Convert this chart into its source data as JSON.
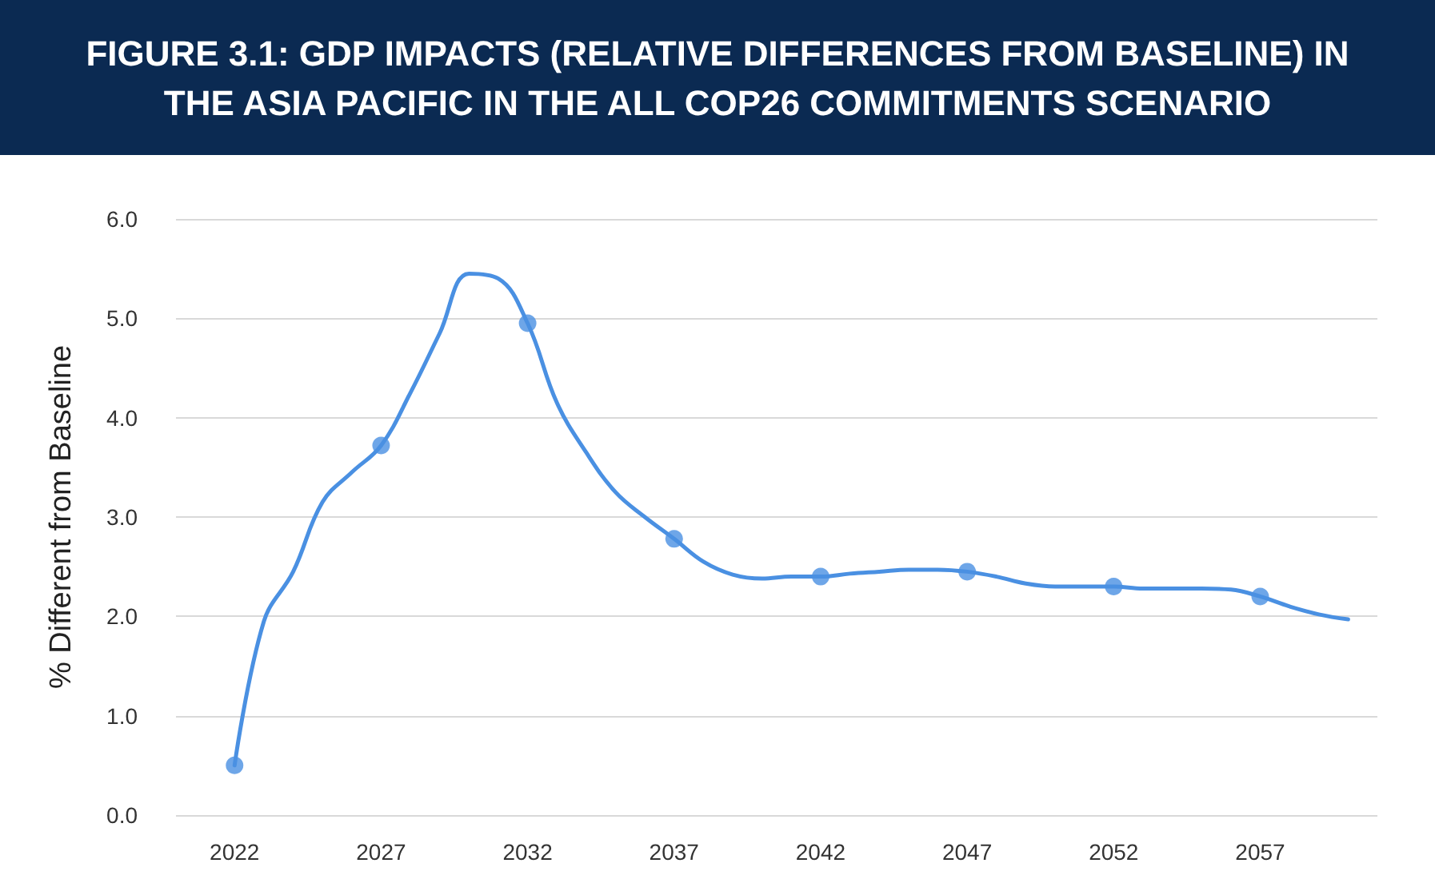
{
  "chart_data": {
    "type": "line",
    "title": "FIGURE 3.1:  GDP IMPACTS (RELATIVE DIFFERENCES FROM BASELINE) IN THE ASIA PACIFIC IN THE ALL COP26 COMMITMENTS SCENARIO",
    "ylabel": "% Different from Baseline",
    "xlim": [
      2020,
      2061
    ],
    "xticks": [
      2022,
      2027,
      2032,
      2037,
      2042,
      2047,
      2052,
      2057
    ],
    "ylim": [
      0,
      6
    ],
    "yticks": [
      {
        "value": 0,
        "label": "0.0"
      },
      {
        "value": 1,
        "label": "1.0"
      },
      {
        "value": 2,
        "label": "2.0"
      },
      {
        "value": 3,
        "label": "3.0"
      },
      {
        "value": 4,
        "label": "4.0"
      },
      {
        "value": 5,
        "label": "5.0"
      },
      {
        "value": 6,
        "label": "6.0"
      }
    ],
    "grid": "y",
    "line_style": "solid",
    "series": [
      {
        "marker": "none",
        "color": "#4a90e2",
        "x": [
          2022,
          2023,
          2024,
          2025,
          2026,
          2027,
          2028,
          2029,
          2030,
          2031,
          2032,
          2033,
          2034,
          2035,
          2036,
          2037,
          2038,
          2039,
          2040,
          2041,
          2042,
          2043,
          2044,
          2045,
          2046,
          2047,
          2048,
          2049,
          2050,
          2051,
          2052,
          2053,
          2054,
          2055,
          2056,
          2057,
          2058,
          2059,
          2060
        ],
        "values": [
          0.5,
          1.95,
          2.45,
          3.15,
          3.45,
          3.72,
          4.25,
          4.85,
          5.45,
          5.4,
          4.95,
          4.15,
          3.65,
          3.25,
          3.0,
          2.78,
          2.55,
          2.42,
          2.38,
          2.4,
          2.4,
          2.43,
          2.45,
          2.47,
          2.47,
          2.45,
          2.4,
          2.33,
          2.3,
          2.3,
          2.3,
          2.28,
          2.28,
          2.28,
          2.27,
          2.2,
          2.1,
          2.02,
          1.97
        ]
      },
      {
        "type": "scatter",
        "marker": "circle",
        "color": "#4a90e2",
        "x": [
          2022,
          2027,
          2032,
          2037,
          2042,
          2047,
          2052,
          2057
        ],
        "values": [
          0.5,
          3.72,
          4.95,
          2.78,
          2.4,
          2.45,
          2.3,
          2.2
        ]
      }
    ]
  }
}
